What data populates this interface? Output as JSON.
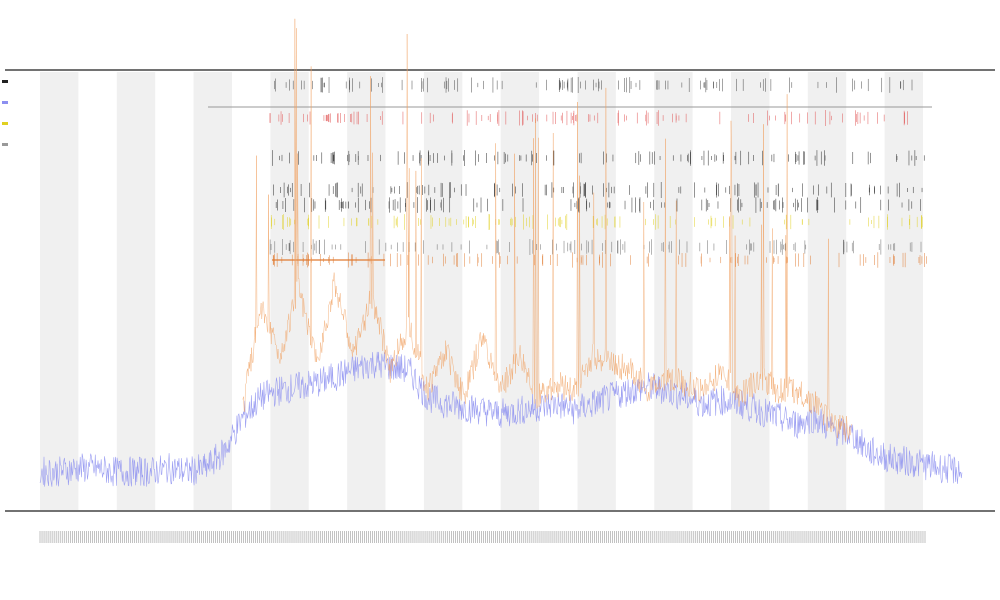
{
  "title_lines": [],
  "x_axis_label": "",
  "colors": {
    "band": "#f0f0f0",
    "axis": "#444444",
    "series_main": "#8c8ff0",
    "series_spikes": "#f0a060",
    "series_spike_line": "#e07a30",
    "event_marks_dark": "#222222",
    "event_marks_red": "#e05050",
    "event_marks_yellow": "#e0d020",
    "timeline_rule": "#999999"
  },
  "chart_data": {
    "type": "line",
    "title": "",
    "xlabel": "",
    "ylabel": "",
    "grid": false,
    "legend_position": "top-left",
    "bands": {
      "count": 12,
      "pattern": "alternating-shaded-columns"
    },
    "event_rows": {
      "count": 8,
      "row_colors": [
        "#444444",
        "#e05050",
        "#222222",
        "#222222",
        "#222222",
        "#e0d020",
        "#666666",
        "#e07a30"
      ]
    },
    "series": [
      {
        "color": "#8c8ff0",
        "x": [
          0,
          2,
          4,
          6,
          8,
          10,
          12,
          14,
          16,
          18,
          20,
          22,
          24,
          26,
          28,
          30,
          32,
          34,
          36,
          38,
          40,
          42,
          44,
          46,
          48,
          50,
          52,
          54,
          56,
          58,
          60,
          62,
          64,
          66,
          68,
          70,
          72,
          74,
          76,
          78,
          80,
          82,
          84,
          86,
          88,
          90,
          92,
          94,
          96,
          98,
          100
        ],
        "values": [
          0.06,
          0.06,
          0.07,
          0.07,
          0.06,
          0.06,
          0.06,
          0.07,
          0.06,
          0.07,
          0.12,
          0.22,
          0.28,
          0.3,
          0.31,
          0.32,
          0.34,
          0.36,
          0.38,
          0.37,
          0.36,
          0.28,
          0.26,
          0.25,
          0.24,
          0.23,
          0.24,
          0.25,
          0.26,
          0.24,
          0.26,
          0.28,
          0.3,
          0.31,
          0.3,
          0.28,
          0.26,
          0.27,
          0.26,
          0.24,
          0.22,
          0.2,
          0.22,
          0.18,
          0.17,
          0.12,
          0.1,
          0.09,
          0.08,
          0.07,
          0.06
        ]
      },
      {
        "color": "#f0a060",
        "x": [
          22,
          24,
          26,
          28,
          30,
          32,
          34,
          36,
          38,
          40,
          42,
          44,
          46,
          48,
          50,
          52,
          54,
          56,
          58,
          60,
          62,
          64,
          66,
          68,
          70,
          72,
          74,
          76,
          78,
          80,
          82,
          84,
          86,
          88
        ],
        "values": [
          0.25,
          0.55,
          0.4,
          0.6,
          0.38,
          0.62,
          0.4,
          0.58,
          0.36,
          0.5,
          0.3,
          0.42,
          0.28,
          0.46,
          0.3,
          0.4,
          0.28,
          0.32,
          0.3,
          0.4,
          0.38,
          0.36,
          0.3,
          0.34,
          0.32,
          0.3,
          0.36,
          0.28,
          0.34,
          0.3,
          0.3,
          0.26,
          0.2,
          0.18
        ]
      }
    ]
  }
}
